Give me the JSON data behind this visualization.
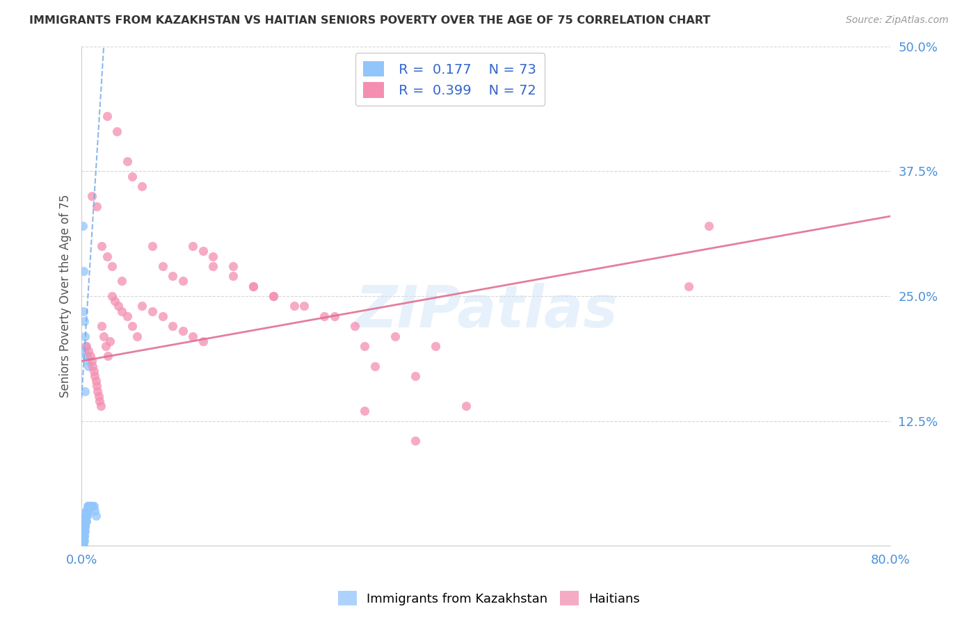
{
  "title": "IMMIGRANTS FROM KAZAKHSTAN VS HAITIAN SENIORS POVERTY OVER THE AGE OF 75 CORRELATION CHART",
  "source": "Source: ZipAtlas.com",
  "ylabel": "Seniors Poverty Over the Age of 75",
  "xlim": [
    0.0,
    0.8
  ],
  "ylim": [
    0.0,
    0.5
  ],
  "legend1_R": "0.177",
  "legend1_N": "73",
  "legend2_R": "0.399",
  "legend2_N": "72",
  "blue_color": "#92c5fc",
  "pink_color": "#f48fb1",
  "trendline_blue_color": "#7baae8",
  "trendline_pink_color": "#e07090",
  "watermark": "ZIPatlas",
  "kaz_x": [
    0.0008,
    0.001,
    0.001,
    0.0012,
    0.0012,
    0.0013,
    0.0014,
    0.0015,
    0.0015,
    0.0016,
    0.0017,
    0.0018,
    0.0018,
    0.0019,
    0.002,
    0.002,
    0.0022,
    0.0022,
    0.0023,
    0.0024,
    0.0025,
    0.0025,
    0.0026,
    0.0027,
    0.0028,
    0.0029,
    0.003,
    0.0031,
    0.0032,
    0.0033,
    0.0034,
    0.0035,
    0.0036,
    0.0037,
    0.0038,
    0.0039,
    0.004,
    0.0041,
    0.0042,
    0.0043,
    0.0044,
    0.0045,
    0.0047,
    0.0048,
    0.005,
    0.0052,
    0.0055,
    0.0058,
    0.006,
    0.0063,
    0.0067,
    0.007,
    0.0075,
    0.008,
    0.0085,
    0.009,
    0.0095,
    0.01,
    0.011,
    0.012,
    0.013,
    0.014,
    0.003,
    0.0025,
    0.0015,
    0.0018,
    0.0022,
    0.0028,
    0.0035,
    0.0042,
    0.0048,
    0.0055,
    0.0065
  ],
  "kaz_y": [
    0.0,
    0.0,
    0.005,
    0.0,
    0.005,
    0.01,
    0.005,
    0.0,
    0.01,
    0.005,
    0.01,
    0.005,
    0.0,
    0.01,
    0.005,
    0.015,
    0.01,
    0.015,
    0.005,
    0.01,
    0.015,
    0.02,
    0.01,
    0.015,
    0.02,
    0.015,
    0.02,
    0.015,
    0.025,
    0.02,
    0.025,
    0.02,
    0.025,
    0.03,
    0.025,
    0.03,
    0.025,
    0.03,
    0.025,
    0.03,
    0.035,
    0.025,
    0.03,
    0.035,
    0.03,
    0.035,
    0.03,
    0.035,
    0.04,
    0.035,
    0.04,
    0.035,
    0.04,
    0.04,
    0.04,
    0.04,
    0.04,
    0.04,
    0.04,
    0.04,
    0.035,
    0.03,
    0.155,
    0.195,
    0.32,
    0.275,
    0.235,
    0.225,
    0.21,
    0.2,
    0.19,
    0.185,
    0.18
  ],
  "hai_x": [
    0.005,
    0.007,
    0.009,
    0.01,
    0.011,
    0.012,
    0.013,
    0.014,
    0.015,
    0.016,
    0.017,
    0.018,
    0.019,
    0.02,
    0.022,
    0.024,
    0.026,
    0.028,
    0.03,
    0.033,
    0.036,
    0.04,
    0.045,
    0.05,
    0.055,
    0.06,
    0.07,
    0.08,
    0.09,
    0.1,
    0.11,
    0.12,
    0.13,
    0.15,
    0.17,
    0.19,
    0.21,
    0.24,
    0.27,
    0.31,
    0.35,
    0.01,
    0.015,
    0.02,
    0.025,
    0.03,
    0.04,
    0.05,
    0.06,
    0.07,
    0.08,
    0.09,
    0.1,
    0.11,
    0.12,
    0.13,
    0.15,
    0.17,
    0.19,
    0.22,
    0.25,
    0.28,
    0.6,
    0.62,
    0.29,
    0.33,
    0.38,
    0.28,
    0.33,
    0.025,
    0.035,
    0.045
  ],
  "hai_y": [
    0.2,
    0.195,
    0.19,
    0.185,
    0.18,
    0.175,
    0.17,
    0.165,
    0.16,
    0.155,
    0.15,
    0.145,
    0.14,
    0.22,
    0.21,
    0.2,
    0.19,
    0.205,
    0.25,
    0.245,
    0.24,
    0.235,
    0.23,
    0.22,
    0.21,
    0.24,
    0.235,
    0.23,
    0.22,
    0.215,
    0.21,
    0.205,
    0.28,
    0.27,
    0.26,
    0.25,
    0.24,
    0.23,
    0.22,
    0.21,
    0.2,
    0.35,
    0.34,
    0.3,
    0.29,
    0.28,
    0.265,
    0.37,
    0.36,
    0.3,
    0.28,
    0.27,
    0.265,
    0.3,
    0.295,
    0.29,
    0.28,
    0.26,
    0.25,
    0.24,
    0.23,
    0.2,
    0.26,
    0.32,
    0.18,
    0.17,
    0.14,
    0.135,
    0.105,
    0.43,
    0.415,
    0.385
  ]
}
